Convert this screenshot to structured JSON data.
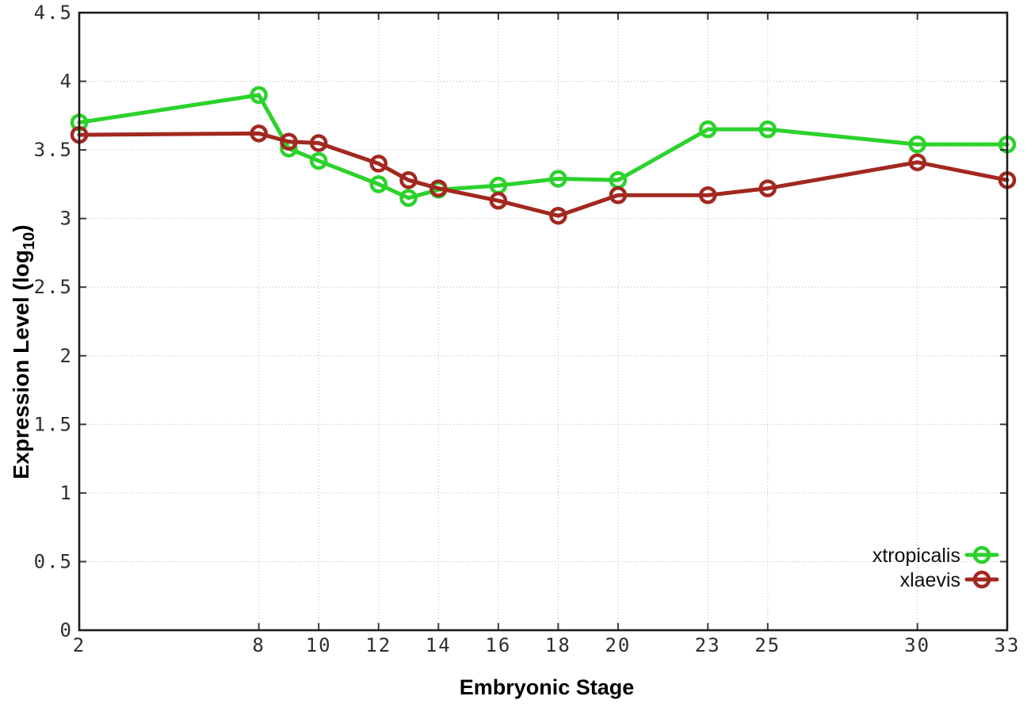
{
  "figure": {
    "background": "#ffffff",
    "border_color": "#1c1c1c",
    "grid_color": "#b6b6b6"
  },
  "chart_data": {
    "type": "line",
    "title": "",
    "xlabel": "Embryonic Stage",
    "ylabel": {
      "main": "Expression Level (log",
      "sub": "10",
      "close": ")"
    },
    "xlim": [
      2,
      33
    ],
    "ylim": [
      0,
      4.5
    ],
    "x_ticks": [
      2,
      8,
      10,
      12,
      14,
      16,
      18,
      20,
      23,
      25,
      30,
      33
    ],
    "y_ticks": [
      0,
      0.5,
      1,
      1.5,
      2,
      2.5,
      3,
      3.5,
      4,
      4.5
    ],
    "grid": true,
    "legend_position": "bottom-right",
    "x": [
      2,
      8,
      9,
      10,
      12,
      13,
      14,
      16,
      18,
      20,
      23,
      25,
      30,
      33
    ],
    "series": [
      {
        "name": "xtropicalis",
        "color": "#2bd22b",
        "values": [
          3.7,
          3.9,
          3.51,
          3.42,
          3.25,
          3.15,
          3.21,
          3.24,
          3.29,
          3.28,
          3.65,
          3.65,
          3.54,
          3.54
        ]
      },
      {
        "name": "xlaevis",
        "color": "#a22820",
        "values": [
          3.61,
          3.62,
          3.56,
          3.55,
          3.4,
          3.28,
          3.22,
          3.13,
          3.02,
          3.17,
          3.17,
          3.22,
          3.41,
          3.28
        ]
      }
    ]
  }
}
